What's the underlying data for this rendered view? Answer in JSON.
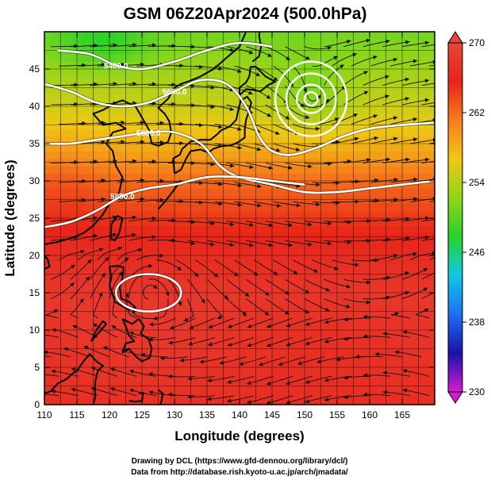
{
  "chart_data": {
    "type": "heatmap",
    "title": "GSM 06Z20Apr2024 (500.0hPa)",
    "xlabel": "Longitude (degrees)",
    "ylabel": "Latitude  (degrees)",
    "xlim": [
      110,
      170
    ],
    "ylim": [
      0,
      50
    ],
    "x_ticks": [
      "110",
      "115",
      "120",
      "125",
      "130",
      "135",
      "140",
      "145",
      "150",
      "155",
      "160",
      "165"
    ],
    "y_ticks": [
      "0",
      "5",
      "10",
      "15",
      "20",
      "25",
      "30",
      "35",
      "40",
      "45"
    ],
    "grid": true,
    "colorbar": {
      "range": [
        230,
        270
      ],
      "ticks": [
        "230",
        "238",
        "246",
        "254",
        "262",
        "270"
      ],
      "colors": [
        "#d61bd0",
        "#1a12a8",
        "#1e6ff0",
        "#12c8e6",
        "#28d22a",
        "#8ed61a",
        "#f0c814",
        "#f57e1c",
        "#e82418",
        "#e8463a"
      ]
    },
    "contour_labels": [
      "5400.0",
      "5600.0",
      "5800.0",
      "5880.0"
    ],
    "contours": [
      {
        "label": "5400.0",
        "points": [
          [
            112,
            47.5
          ],
          [
            117,
            47
          ],
          [
            121,
            45.5
          ],
          [
            125,
            45
          ],
          [
            130,
            46
          ],
          [
            135,
            47.5
          ],
          [
            140,
            48.5
          ],
          [
            145,
            48
          ]
        ]
      },
      {
        "label": "5600.0",
        "points": [
          [
            110,
            43
          ],
          [
            114,
            42
          ],
          [
            118,
            40.5
          ],
          [
            122,
            40
          ],
          [
            126,
            40.5
          ],
          [
            130,
            42
          ],
          [
            134,
            43.5
          ],
          [
            138,
            43
          ],
          [
            141,
            40
          ],
          [
            143,
            36
          ],
          [
            145,
            34
          ],
          [
            148,
            33.5
          ],
          [
            152,
            34.5
          ],
          [
            156,
            36
          ],
          [
            160,
            37
          ],
          [
            165,
            37.5
          ],
          [
            170,
            37.8
          ]
        ]
      },
      {
        "label": "5800.0",
        "points": [
          [
            110,
            35
          ],
          [
            114,
            35
          ],
          [
            118,
            35.5
          ],
          [
            122,
            36
          ],
          [
            126,
            36.5
          ],
          [
            130,
            36.5
          ],
          [
            134,
            35
          ],
          [
            137,
            32
          ],
          [
            140,
            30.5
          ],
          [
            145,
            29.5
          ],
          [
            150,
            28.5
          ],
          [
            155,
            28.5
          ],
          [
            160,
            29
          ],
          [
            165,
            29.5
          ],
          [
            170,
            30
          ]
        ]
      },
      {
        "label": "5880.0",
        "points": [
          [
            110,
            23.8
          ],
          [
            114,
            24.5
          ],
          [
            118,
            26
          ],
          [
            122,
            28
          ],
          [
            126,
            29
          ],
          [
            130,
            29.5
          ],
          [
            135,
            30.5
          ],
          [
            140,
            30.5
          ],
          [
            145,
            30
          ],
          [
            150,
            29.5
          ]
        ]
      }
    ],
    "lows": [
      {
        "lon": 151,
        "lat": 41
      }
    ],
    "highs_closed": [
      {
        "lon": 126,
        "lat": 15,
        "rx": 5,
        "ry": 2.5
      }
    ],
    "colormap_anchors": [
      {
        "lat": 0,
        "value": 267
      },
      {
        "lat": 15,
        "value": 268
      },
      {
        "lat": 22,
        "value": 266
      },
      {
        "lat": 30,
        "value": 262
      },
      {
        "lat": 35,
        "value": 258
      },
      {
        "lat": 40,
        "value": 255
      },
      {
        "lat": 45,
        "value": 253
      },
      {
        "lat": 50,
        "value": 251
      }
    ]
  },
  "credits": {
    "line1": "Drawing by DCL (https://www.gfd-dennou.org/library/dcl/)",
    "line2": "Data from http://database.rish.kyoto-u.ac.jp/arch/jmadata/"
  }
}
